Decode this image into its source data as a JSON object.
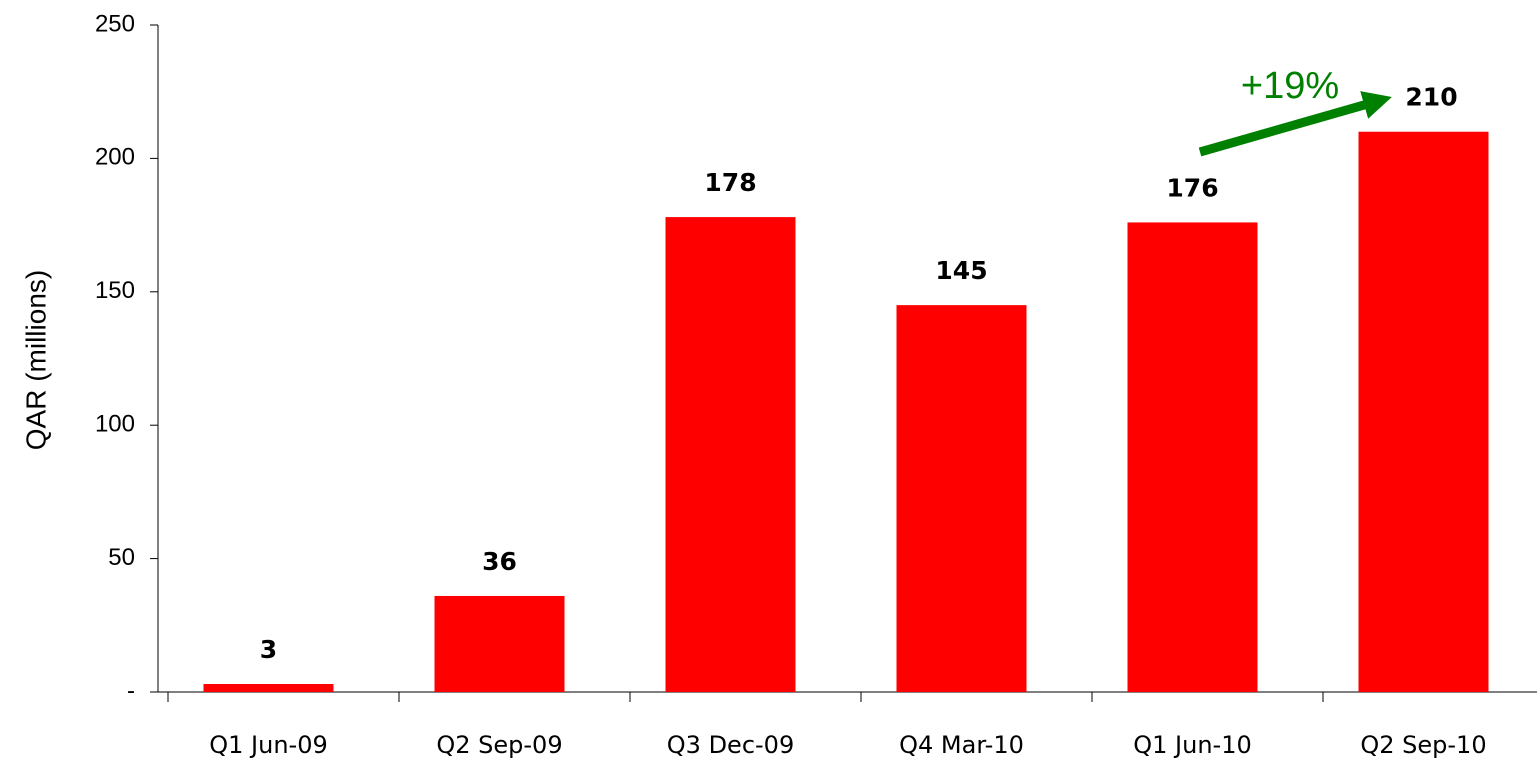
{
  "chart_data": {
    "type": "bar",
    "y_label": "QAR (millions)",
    "categories": [
      "Q1 Jun-09",
      "Q2 Sep-09",
      "Q3 Dec-09",
      "Q4 Mar-10",
      "Q1 Jun-10",
      "Q2 Sep-10"
    ],
    "values": [
      3,
      36,
      178,
      145,
      176,
      210
    ],
    "color": "#ff0000",
    "ylim": [
      0,
      250
    ],
    "yticks": [
      {
        "value": 0,
        "label": "-"
      },
      50,
      100,
      150,
      200,
      250
    ],
    "annotation": "+19%",
    "annotation_color": "#008000"
  }
}
